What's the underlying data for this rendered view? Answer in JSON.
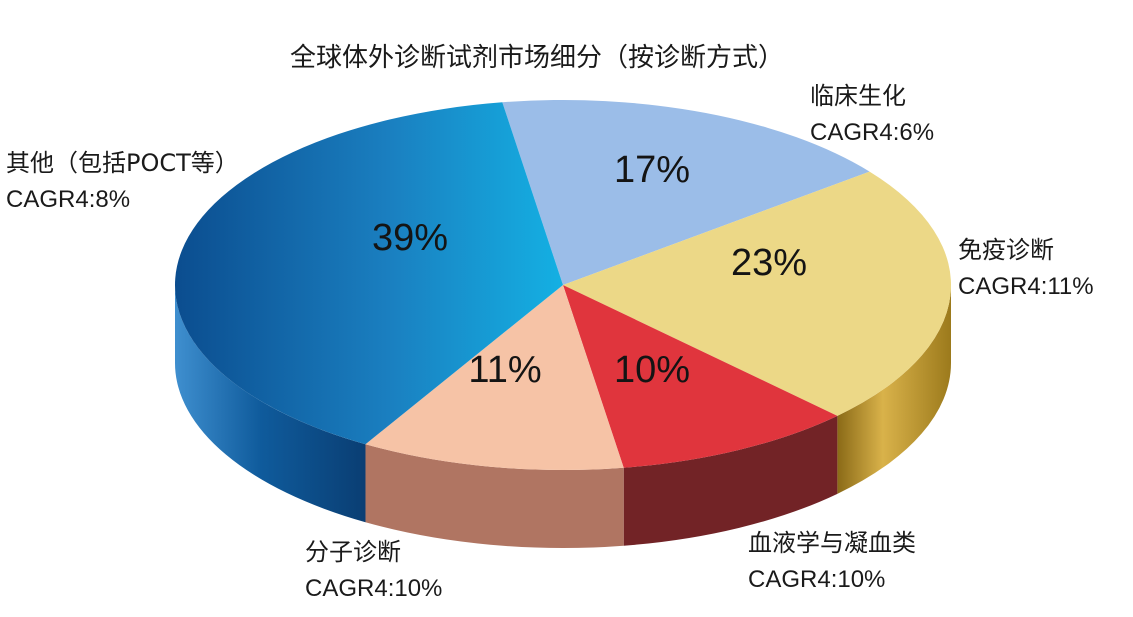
{
  "chart_data": {
    "type": "pie",
    "title": "全球体外诊断试剂市场细分（按诊断方式）",
    "slices": [
      {
        "label": "临床生化",
        "value": 17,
        "value_label": "17%",
        "note": "CAGR4:6%",
        "color": "#9bbde8",
        "side_color": "#6f8fc0"
      },
      {
        "label": "免疫诊断",
        "value": 23,
        "value_label": "23%",
        "note": "CAGR4:11%",
        "color": "#ecd887",
        "side_color": "#b48a22"
      },
      {
        "label": "血液学与凝血类",
        "value": 10,
        "value_label": "10%",
        "note": "CAGR4:10%",
        "color": "#e0353d",
        "side_color": "#722326"
      },
      {
        "label": "分子诊断",
        "value": 11,
        "value_label": "11%",
        "note": "CAGR4:10%",
        "color": "#f6c3a6",
        "side_color": "#b07562"
      },
      {
        "label": "其他（包括POCT等）",
        "value": 39,
        "value_label": "39%",
        "note": "CAGR4:8%",
        "color": "#1e8ac6",
        "side_color": "#0e4f8a"
      }
    ]
  }
}
